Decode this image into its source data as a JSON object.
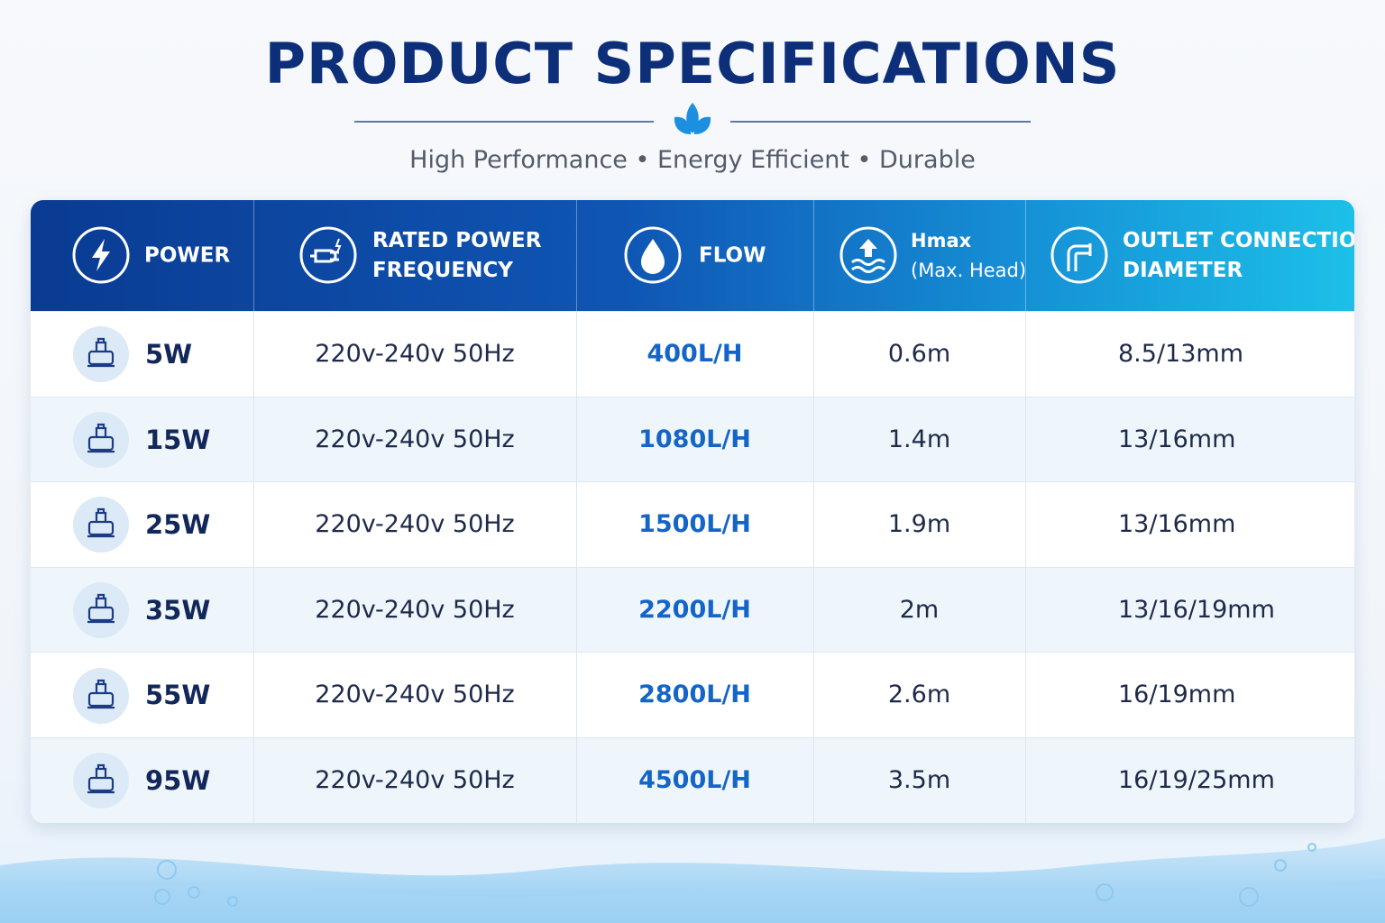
{
  "header": {
    "title": "PRODUCT SPECIFICATIONS",
    "subtitle": "High Performance • Energy Efficient • Durable"
  },
  "table": {
    "columns": [
      {
        "lines": [
          "POWER"
        ]
      },
      {
        "lines": [
          "RATED POWER",
          "FREQUENCY"
        ]
      },
      {
        "lines": [
          "FLOW"
        ]
      },
      {
        "lines": [
          "Hmax",
          "(Max. Head)"
        ]
      },
      {
        "lines": [
          "OUTLET CONNECTION",
          "DIAMETER"
        ]
      }
    ],
    "rows": [
      [
        "5W",
        "220v-240v 50Hz",
        "400L/H",
        "0.6m",
        "8.5/13mm"
      ],
      [
        "15W",
        "220v-240v 50Hz",
        "1080L/H",
        "1.4m",
        "13/16mm"
      ],
      [
        "25W",
        "220v-240v 50Hz",
        "1500L/H",
        "1.9m",
        "13/16mm"
      ],
      [
        "35W",
        "220v-240v 50Hz",
        "2200L/H",
        "2m",
        "13/16/19mm"
      ],
      [
        "55W",
        "220v-240v 50Hz",
        "2800L/H",
        "2.6m",
        "16/19mm"
      ],
      [
        "95W",
        "220v-240v 50Hz",
        "4500L/H",
        "3.5m",
        "16/19/25mm"
      ]
    ]
  }
}
